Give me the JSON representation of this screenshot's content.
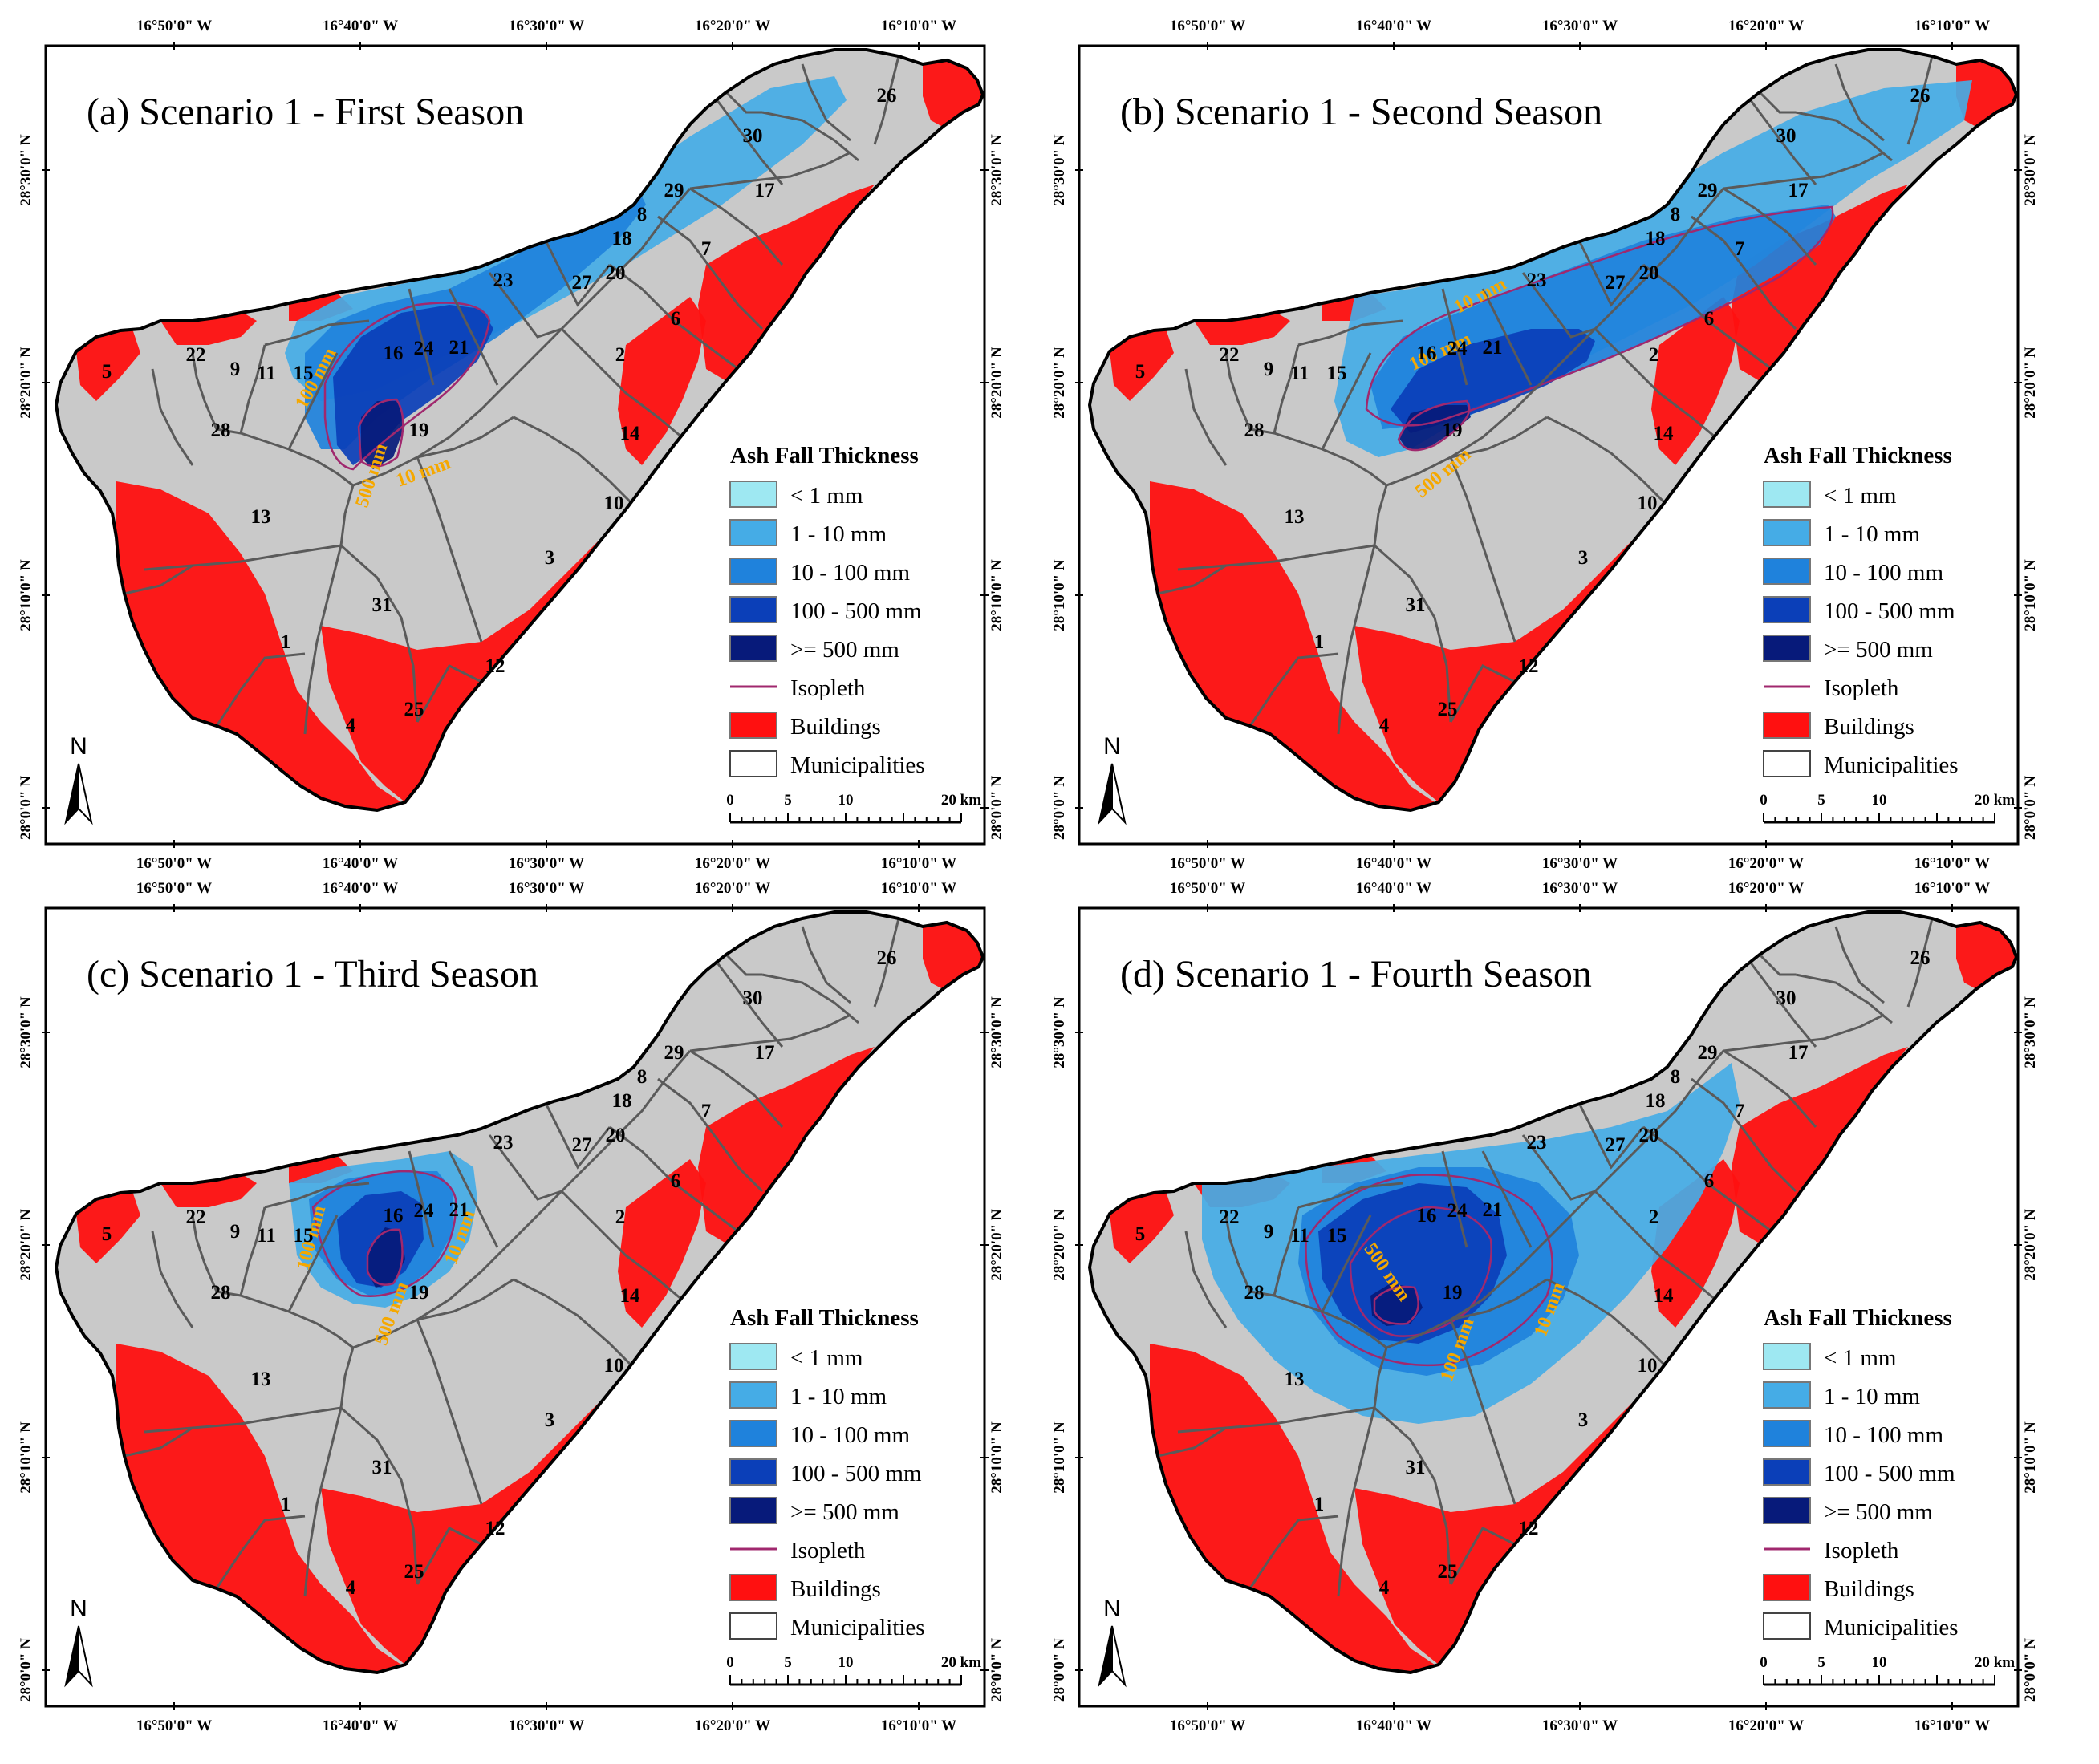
{
  "legend": {
    "title": "Ash Fall Thickness",
    "items": [
      {
        "label": "< 1 mm",
        "color": "#9ee8f2",
        "kind": "fill"
      },
      {
        "label": "1 - 10 mm",
        "color": "#45ace6",
        "kind": "fill"
      },
      {
        "label": "10 - 100 mm",
        "color": "#1f82dc",
        "kind": "fill"
      },
      {
        "label": "100 - 500 mm",
        "color": "#0b3fb8",
        "kind": "fill"
      },
      {
        "label": ">= 500 mm",
        "color": "#071a7a",
        "kind": "fill"
      },
      {
        "label": "Isopleth",
        "color": "#a0286e",
        "kind": "line"
      },
      {
        "label": "Buildings",
        "color": "#ff1010",
        "kind": "fill"
      },
      {
        "label": "Municipalities",
        "color": "#ffffff",
        "kind": "outline"
      }
    ]
  },
  "scale_bar": {
    "ticks": [
      "0",
      "5",
      "10",
      "20 km"
    ]
  },
  "north_label": "N",
  "coords": {
    "lon": [
      "16°50'0\" W",
      "16°40'0\" W",
      "16°30'0\" W",
      "16°20'0\" W",
      "16°10'0\" W"
    ],
    "lat": [
      "28°30'0\" N",
      "28°20'0\" N",
      "28°10'0\" N",
      "28°0'0\" N"
    ]
  },
  "colors": {
    "terrain": "#c9c9c9",
    "coast": "#000000",
    "boundary": "#5a5a5a",
    "buildings": "#ff1010",
    "isopleth": "#a0286e"
  },
  "panels": [
    {
      "title": "(a) Scenario 1 - First Season",
      "isopleth_labels": [
        "100 mm",
        "500 mm",
        "10 mm"
      ]
    },
    {
      "title": "(b) Scenario 1 - Second Season",
      "isopleth_labels": [
        "10 mm",
        "100 mm",
        "500 mm"
      ]
    },
    {
      "title": "(c) Scenario 1 - Third Season",
      "isopleth_labels": [
        "100 mm",
        "500 mm",
        "10 mm"
      ]
    },
    {
      "title": "(d) Scenario 1 - Fourth Season",
      "isopleth_labels": [
        "500 mm",
        "100 mm",
        "10 mm"
      ]
    }
  ],
  "municipalities": [
    "1",
    "2",
    "3",
    "4",
    "5",
    "6",
    "7",
    "8",
    "9",
    "10",
    "11",
    "12",
    "13",
    "14",
    "15",
    "16",
    "17",
    "18",
    "19",
    "20",
    "21",
    "22",
    "23",
    "24",
    "25",
    "26",
    "27",
    "28",
    "29",
    "30",
    "31"
  ]
}
